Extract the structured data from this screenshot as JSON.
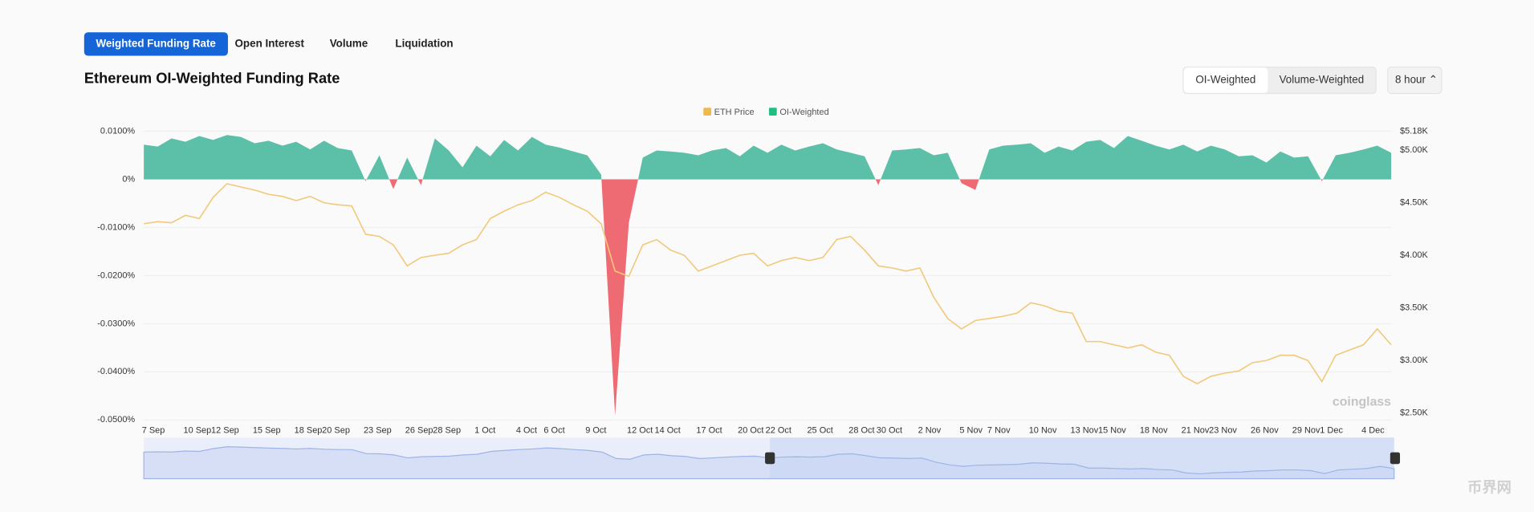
{
  "tabs": [
    "Weighted Funding Rate",
    "Open Interest",
    "Volume",
    "Liquidation"
  ],
  "active_tab": 0,
  "title": "Ethereum OI-Weighted Funding Rate",
  "toggle": [
    "OI-Weighted",
    "Volume-Weighted"
  ],
  "interval": "8 hour",
  "watermark": "coinglass",
  "corner_watermark": "币界网",
  "chart_data": {
    "type": "area-line",
    "categories": [
      "7 Sep",
      null,
      null,
      "10 Sep",
      null,
      "12 Sep",
      null,
      null,
      "15 Sep",
      null,
      null,
      "18 Sep",
      null,
      "20 Sep",
      null,
      null,
      "23 Sep",
      null,
      null,
      "26 Sep",
      null,
      "28 Sep",
      null,
      null,
      "1 Oct",
      null,
      null,
      "4 Oct",
      null,
      "6 Oct",
      null,
      null,
      "9 Oct",
      null,
      null,
      "12 Oct",
      null,
      "14 Oct",
      null,
      null,
      "17 Oct",
      null,
      null,
      "20 Oct",
      null,
      "22 Oct",
      null,
      null,
      "25 Oct",
      null,
      null,
      "28 Oct",
      null,
      "30 Oct",
      null,
      null,
      "2 Nov",
      null,
      null,
      "5 Nov",
      null,
      "7 Nov",
      null,
      null,
      "10 Nov",
      null,
      null,
      "13 Nov",
      null,
      "15 Nov",
      null,
      null,
      "18 Nov",
      null,
      null,
      "21 Nov",
      null,
      "23 Nov",
      null,
      null,
      "26 Nov",
      null,
      null,
      "29 Nov",
      null,
      "1 Dec",
      null,
      null,
      "4 Dec",
      null,
      null
    ],
    "series": [
      {
        "name": "OI-Weighted",
        "color": "#5cc0a8",
        "negative_color": "#ee6b74",
        "axis": "y",
        "values": [
          0.0072,
          0.0068,
          0.0085,
          0.0078,
          0.009,
          0.0082,
          0.0092,
          0.0088,
          0.0075,
          0.008,
          0.007,
          0.0078,
          0.0062,
          0.008,
          0.0065,
          0.006,
          -0.0004,
          0.005,
          -0.002,
          0.0045,
          -0.0012,
          0.0085,
          0.006,
          0.0025,
          0.007,
          0.0048,
          0.0082,
          0.006,
          0.0088,
          0.0072,
          0.0066,
          0.0058,
          0.005,
          0.001,
          -0.049,
          -0.009,
          0.0045,
          0.006,
          0.0058,
          0.0055,
          0.005,
          0.006,
          0.0065,
          0.0048,
          0.007,
          0.0055,
          0.0072,
          0.006,
          0.0068,
          0.0075,
          0.0062,
          0.0055,
          0.0048,
          -0.0012,
          0.006,
          0.0062,
          0.0065,
          0.005,
          0.0055,
          -0.0008,
          -0.0022,
          0.0062,
          0.007,
          0.0072,
          0.0075,
          0.0055,
          0.0068,
          0.006,
          0.0078,
          0.0082,
          0.0065,
          0.009,
          0.008,
          0.007,
          0.0062,
          0.0072,
          0.0058,
          0.007,
          0.0062,
          0.0048,
          0.005,
          0.0035,
          0.0058,
          0.0045,
          0.0048,
          -0.0004,
          0.005,
          0.0055,
          0.0062,
          0.007,
          0.0055
        ]
      },
      {
        "name": "ETH Price",
        "color": "#f2c87a",
        "axis": "y2",
        "values": [
          4300,
          4320,
          4310,
          4380,
          4350,
          4550,
          4680,
          4650,
          4620,
          4580,
          4560,
          4520,
          4560,
          4500,
          4480,
          4470,
          4200,
          4180,
          4100,
          3900,
          3980,
          4000,
          4020,
          4100,
          4150,
          4350,
          4420,
          4480,
          4520,
          4600,
          4550,
          4480,
          4420,
          4300,
          3850,
          3800,
          4100,
          4150,
          4050,
          4000,
          3850,
          3900,
          3950,
          4000,
          4020,
          3900,
          3950,
          3980,
          3950,
          3980,
          4150,
          4180,
          4050,
          3900,
          3880,
          3850,
          3880,
          3600,
          3400,
          3300,
          3380,
          3400,
          3420,
          3450,
          3550,
          3520,
          3470,
          3450,
          3180,
          3180,
          3150,
          3120,
          3150,
          3080,
          3050,
          2850,
          2780,
          2850,
          2880,
          2900,
          2980,
          3000,
          3050,
          3050,
          3000,
          2800,
          3050,
          3100,
          3150,
          3300,
          3150
        ]
      }
    ],
    "legend_order": [
      1,
      0
    ],
    "ylim": [
      -0.05,
      0.01
    ],
    "yticks": [
      {
        "value": 0.01,
        "label": "0.0100%"
      },
      {
        "value": 0,
        "label": "0%"
      },
      {
        "value": -0.01,
        "label": "-0.0100%"
      },
      {
        "value": -0.02,
        "label": "-0.0200%"
      },
      {
        "value": -0.03,
        "label": "-0.0300%"
      },
      {
        "value": -0.04,
        "label": "-0.0400%"
      },
      {
        "value": -0.05,
        "label": "-0.0500%"
      }
    ],
    "y2lim": [
      2435,
      5180
    ],
    "y2ticks": [
      {
        "value": 5180,
        "label": "$5.18K"
      },
      {
        "value": 5000,
        "label": "$5.00K"
      },
      {
        "value": 4500,
        "label": "$4.50K"
      },
      {
        "value": 4000,
        "label": "$4.00K"
      },
      {
        "value": 3500,
        "label": "$3.50K"
      },
      {
        "value": 3000,
        "label": "$3.00K"
      },
      {
        "value": 2500,
        "label": "$2.50K"
      }
    ],
    "grid": true
  }
}
